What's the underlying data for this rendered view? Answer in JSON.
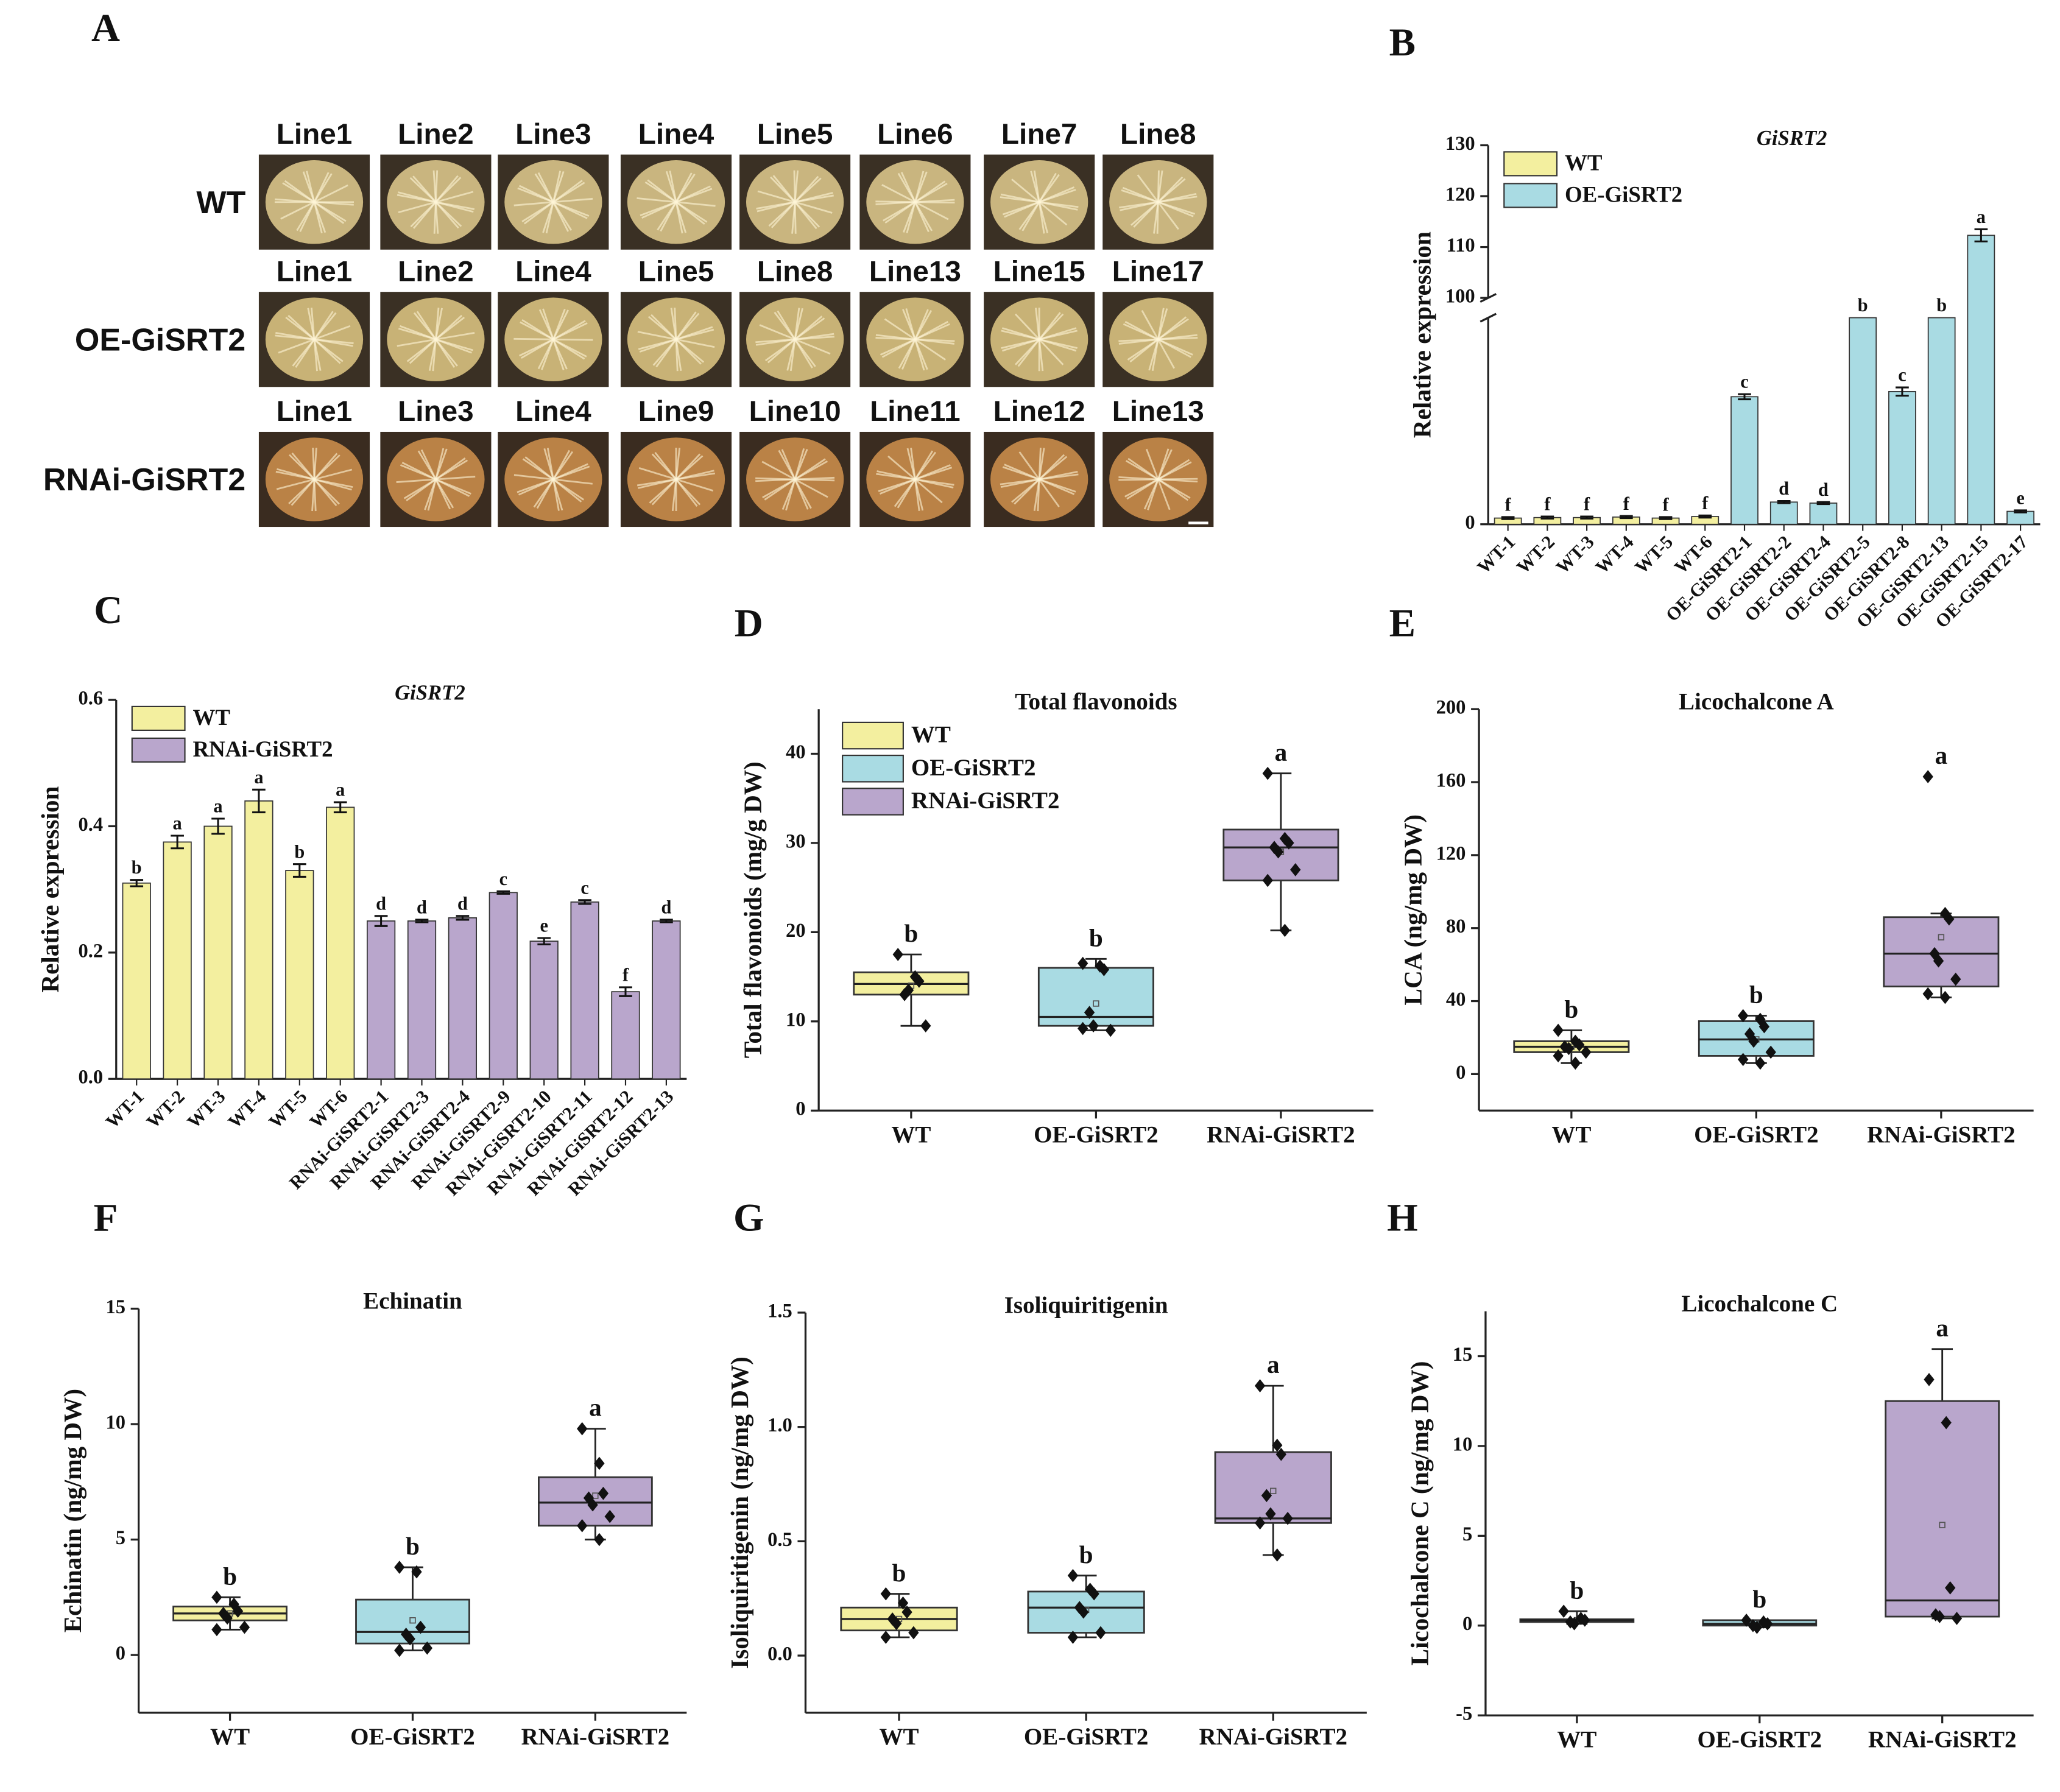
{
  "photo_panel": {
    "panel_label": "A",
    "rows": [
      {
        "label": "WT",
        "lines": [
          "Line1",
          "Line2",
          "Line3",
          "Line4",
          "Line5",
          "Line6",
          "Line7",
          "Line8"
        ]
      },
      {
        "label": "OE-GiSRT2",
        "lines": [
          "Line1",
          "Line2",
          "Line4",
          "Line5",
          "Line8",
          "Line13",
          "Line15",
          "Line17"
        ]
      },
      {
        "label": "RNAi-GiSRT2",
        "lines": [
          "Line1",
          "Line3",
          "Line4",
          "Line9",
          "Line10",
          "Line11",
          "Line12",
          "Line13"
        ]
      }
    ]
  },
  "chart_data": [
    {
      "type": "bar",
      "panel_label": "B",
      "title": "GiSRT2",
      "y_label": "Relative expression",
      "categories": [
        "WT-1",
        "WT-2",
        "WT-3",
        "WT-4",
        "WT-5",
        "WT-6",
        "OE-GiSRT2-1",
        "OE-GiSRT2-2",
        "OE-GiSRT2-4",
        "OE-GiSRT2-5",
        "OE-GiSRT2-8",
        "OE-GiSRT2-13",
        "OE-GiSRT2-15",
        "OE-GiSRT2-17"
      ],
      "series": [
        {
          "name": "WT",
          "color": "#f3ef9f",
          "values": [
            1.2,
            1.3,
            1.3,
            1.4,
            1.2,
            1.5,
            null,
            null,
            null,
            null,
            null,
            null,
            null,
            null
          ],
          "errors": [
            0.2,
            0.2,
            0.2,
            0.2,
            0.2,
            0.2,
            null,
            null,
            null,
            null,
            null,
            null,
            null,
            null
          ],
          "letters": [
            "f",
            "f",
            "f",
            "f",
            "f",
            "f",
            null,
            null,
            null,
            null,
            null,
            null,
            null,
            null
          ]
        },
        {
          "name": "OE-GiSRT2",
          "color": "#a9dbe3",
          "values": [
            null,
            null,
            null,
            null,
            null,
            null,
            24.7,
            4.3,
            4.1,
            60,
            25.7,
            60,
            112.3,
            2.5
          ],
          "errors": [
            null,
            null,
            null,
            null,
            null,
            null,
            0.5,
            0.2,
            0.2,
            0,
            0.8,
            0,
            1.2,
            0.2
          ],
          "letters": [
            null,
            null,
            null,
            null,
            null,
            null,
            "c",
            "d",
            "d",
            "b",
            "c",
            "b",
            "a",
            "e"
          ]
        }
      ],
      "ylim": [
        0,
        130
      ],
      "axis_break": [
        40,
        100
      ],
      "yticks": [
        0,
        100,
        110,
        120,
        130
      ]
    },
    {
      "type": "bar",
      "panel_label": "C",
      "title": "GiSRT2",
      "y_label": "Relative expression",
      "categories": [
        "WT-1",
        "WT-2",
        "WT-3",
        "WT-4",
        "WT-5",
        "WT-6",
        "RNAi-GiSRT2-1",
        "RNAi-GiSRT2-3",
        "RNAi-GiSRT2-4",
        "RNAi-GiSRT2-9",
        "RNAi-GiSRT2-10",
        "RNAi-GiSRT2-11",
        "RNAi-GiSRT2-12",
        "RNAi-GiSRT2-13"
      ],
      "series": [
        {
          "name": "WT",
          "color": "#f3ef9f",
          "values": [
            0.31,
            0.375,
            0.4,
            0.44,
            0.33,
            0.43,
            null,
            null,
            null,
            null,
            null,
            null,
            null,
            null
          ],
          "errors": [
            0.005,
            0.01,
            0.012,
            0.018,
            0.01,
            0.008,
            null,
            null,
            null,
            null,
            null,
            null,
            null,
            null
          ],
          "letters": [
            "b",
            "a",
            "a",
            "a",
            "b",
            "a",
            null,
            null,
            null,
            null,
            null,
            null,
            null,
            null
          ]
        },
        {
          "name": "RNAi-GiSRT2",
          "color": "#b9a6cc",
          "values": [
            null,
            null,
            null,
            null,
            null,
            null,
            0.25,
            0.25,
            0.255,
            0.295,
            0.218,
            0.28,
            0.138,
            0.25
          ],
          "errors": [
            null,
            null,
            null,
            null,
            null,
            null,
            0.008,
            0.002,
            0.003,
            0.002,
            0.005,
            0.003,
            0.007,
            0.002
          ],
          "letters": [
            null,
            null,
            null,
            null,
            null,
            null,
            "d",
            "d",
            "d",
            "c",
            "e",
            "c",
            "f",
            "d"
          ]
        }
      ],
      "ylim": [
        0,
        0.6
      ],
      "yticks": [
        {
          "value": 0,
          "label": "0.0"
        },
        {
          "value": 0.2,
          "label": "0.2"
        },
        {
          "value": 0.4,
          "label": "0.4"
        },
        {
          "value": 0.6,
          "label": "0.6"
        }
      ]
    },
    {
      "type": "box",
      "panel_label": "D",
      "title": "Total flavonoids",
      "y_label": "Total flavonoids (mg/g DW)",
      "legend": true,
      "categories": [
        "WT",
        "OE-GiSRT2",
        "RNAi-GiSRT2"
      ],
      "colors": [
        "#f3ef9f",
        "#a9dbe3",
        "#b9a6cc"
      ],
      "boxes": [
        {
          "whisker_low": 9.5,
          "q1": 13,
          "median": 14.2,
          "q3": 15.5,
          "whisker_high": 17.5,
          "mean": 14,
          "points": [
            17.5,
            15,
            14.5,
            13,
            13.5,
            9.5
          ],
          "letter": "b"
        },
        {
          "whisker_low": 9,
          "q1": 9.5,
          "median": 10.5,
          "q3": 16,
          "whisker_high": 17,
          "mean": 12,
          "points": [
            16.5,
            16.2,
            15.8,
            11,
            9.5,
            9,
            9.2
          ],
          "letter": "b"
        },
        {
          "whisker_low": 20.2,
          "q1": 25.8,
          "median": 29.5,
          "q3": 31.5,
          "whisker_high": 37.8,
          "mean": 29,
          "points": [
            37.8,
            30.5,
            30,
            29.5,
            29,
            27,
            25.8,
            20.2
          ],
          "letter": "a"
        }
      ],
      "ylim": [
        0,
        45
      ],
      "yticks": [
        0,
        10,
        20,
        30,
        40
      ]
    },
    {
      "type": "box",
      "panel_label": "E",
      "title": "Licochalcone A",
      "y_label": "LCA (ng/mg DW)",
      "categories": [
        "WT",
        "OE-GiSRT2",
        "RNAi-GiSRT2"
      ],
      "colors": [
        "#f3ef9f",
        "#a9dbe3",
        "#b9a6cc"
      ],
      "boxes": [
        {
          "whisker_low": 6,
          "q1": 12,
          "median": 15,
          "q3": 18,
          "whisker_high": 24,
          "mean": 15,
          "points": [
            24,
            18,
            16,
            15,
            14,
            12,
            10,
            6
          ],
          "letter": "b"
        },
        {
          "whisker_low": 6,
          "q1": 10,
          "median": 19,
          "q3": 29,
          "whisker_high": 32,
          "mean": 19,
          "points": [
            32,
            30,
            26,
            22,
            18,
            12,
            8,
            6
          ],
          "letter": "b"
        },
        {
          "whisker_low": 42,
          "q1": 48,
          "median": 66,
          "q3": 86,
          "whisker_high": 88,
          "mean": 75,
          "points": [
            163,
            88,
            85,
            66,
            62,
            52,
            44,
            42
          ],
          "letter": "a"
        }
      ],
      "ylim": [
        -20,
        200
      ],
      "yticks": [
        0,
        40,
        80,
        120,
        160,
        200
      ]
    },
    {
      "type": "box",
      "panel_label": "F",
      "title": "Echinatin",
      "y_label": "Echinatin (ng/mg DW)",
      "categories": [
        "WT",
        "OE-GiSRT2",
        "RNAi-GiSRT2"
      ],
      "colors": [
        "#f3ef9f",
        "#a9dbe3",
        "#b9a6cc"
      ],
      "boxes": [
        {
          "whisker_low": 1.1,
          "q1": 1.5,
          "median": 1.8,
          "q3": 2.1,
          "whisker_high": 2.5,
          "mean": 1.8,
          "points": [
            2.5,
            2.2,
            1.9,
            1.8,
            1.6,
            1.2,
            1.1
          ],
          "letter": "b"
        },
        {
          "whisker_low": 0.2,
          "q1": 0.5,
          "median": 1.0,
          "q3": 2.4,
          "whisker_high": 3.8,
          "mean": 1.5,
          "points": [
            3.8,
            3.6,
            1.2,
            0.9,
            0.7,
            0.3,
            0.2
          ],
          "letter": "b"
        },
        {
          "whisker_low": 5.0,
          "q1": 5.6,
          "median": 6.6,
          "q3": 7.7,
          "whisker_high": 9.8,
          "mean": 6.9,
          "points": [
            9.8,
            8.3,
            7,
            6.8,
            6.5,
            6,
            5.6,
            5.0
          ],
          "letter": "a"
        }
      ],
      "ylim": [
        -2.5,
        15
      ],
      "yticks": [
        0,
        5,
        10,
        15
      ]
    },
    {
      "type": "box",
      "panel_label": "G",
      "title": "Isoliquiritigenin",
      "y_label": "Isoliquiritigenin (ng/mg DW)",
      "categories": [
        "WT",
        "OE-GiSRT2",
        "RNAi-GiSRT2"
      ],
      "colors": [
        "#f3ef9f",
        "#a9dbe3",
        "#b9a6cc"
      ],
      "boxes": [
        {
          "whisker_low": 0.08,
          "q1": 0.11,
          "median": 0.16,
          "q3": 0.21,
          "whisker_high": 0.27,
          "mean": 0.16,
          "points": [
            0.27,
            0.23,
            0.19,
            0.16,
            0.14,
            0.1,
            0.08
          ],
          "letter": "b"
        },
        {
          "whisker_low": 0.08,
          "q1": 0.1,
          "median": 0.21,
          "q3": 0.28,
          "whisker_high": 0.35,
          "mean": 0.2,
          "points": [
            0.35,
            0.29,
            0.27,
            0.21,
            0.19,
            0.1,
            0.08
          ],
          "letter": "b"
        },
        {
          "whisker_low": 0.44,
          "q1": 0.58,
          "median": 0.6,
          "q3": 0.89,
          "whisker_high": 1.18,
          "mean": 0.72,
          "points": [
            1.18,
            0.92,
            0.88,
            0.7,
            0.62,
            0.6,
            0.58,
            0.44
          ],
          "letter": "a"
        }
      ],
      "ylim": [
        -0.25,
        1.5
      ],
      "yticks": [
        {
          "value": 0,
          "label": "0.0"
        },
        {
          "value": 0.5,
          "label": "0.5"
        },
        {
          "value": 1,
          "label": "1.0"
        },
        {
          "value": 1.5,
          "label": "1.5"
        }
      ]
    },
    {
      "type": "box",
      "panel_label": "H",
      "title": "Licochalcone C",
      "y_label": "Licochalcone C (ng/mg DW)",
      "categories": [
        "WT",
        "OE-GiSRT2",
        "RNAi-GiSRT2"
      ],
      "colors": [
        "#f3ef9f",
        "#a9dbe3",
        "#b9a6cc"
      ],
      "boxes": [
        {
          "whisker_low": 0.1,
          "q1": 0.2,
          "median": 0.3,
          "q3": 0.35,
          "whisker_high": 0.8,
          "mean": 0.3,
          "points": [
            0.8,
            0.4,
            0.3,
            0.2,
            0.1
          ],
          "letter": "b"
        },
        {
          "whisker_low": -0.1,
          "q1": 0,
          "median": 0.1,
          "q3": 0.3,
          "whisker_high": 0.3,
          "mean": 0.1,
          "points": [
            0.3,
            0.2,
            0.1,
            0,
            -0.1
          ],
          "letter": "b"
        },
        {
          "whisker_low": 0.4,
          "q1": 0.5,
          "median": 1.4,
          "q3": 12.5,
          "whisker_high": 15.4,
          "mean": 5.6,
          "points": [
            13.7,
            11.3,
            2.1,
            0.6,
            0.5,
            0.4
          ],
          "letter": "a"
        }
      ],
      "ylim": [
        -5,
        17.5
      ],
      "yticks": [
        -5,
        0,
        5,
        10,
        15
      ]
    }
  ]
}
